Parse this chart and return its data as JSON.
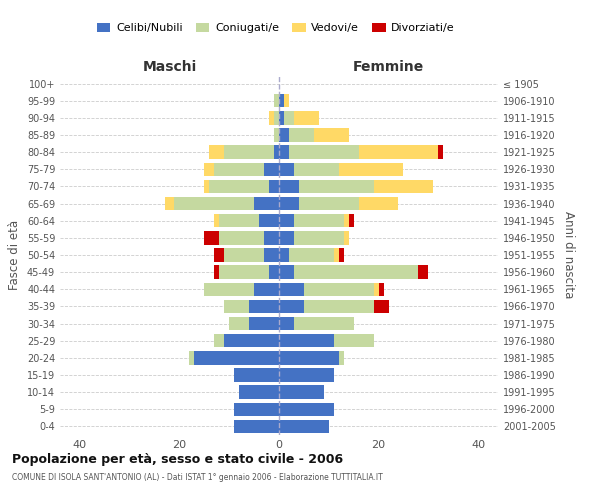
{
  "age_groups": [
    "100+",
    "95-99",
    "90-94",
    "85-89",
    "80-84",
    "75-79",
    "70-74",
    "65-69",
    "60-64",
    "55-59",
    "50-54",
    "45-49",
    "40-44",
    "35-39",
    "30-34",
    "25-29",
    "20-24",
    "15-19",
    "10-14",
    "5-9",
    "0-4"
  ],
  "birth_years": [
    "≤ 1905",
    "1906-1910",
    "1911-1915",
    "1916-1920",
    "1921-1925",
    "1926-1930",
    "1931-1935",
    "1936-1940",
    "1941-1945",
    "1946-1950",
    "1951-1955",
    "1956-1960",
    "1961-1965",
    "1966-1970",
    "1971-1975",
    "1976-1980",
    "1981-1985",
    "1986-1990",
    "1991-1995",
    "1996-2000",
    "2001-2005"
  ],
  "colors": {
    "celibi": "#4472C4",
    "coniugati": "#c5d9a0",
    "vedovi": "#ffd966",
    "divorziati": "#cc0000"
  },
  "maschi": {
    "celibi": [
      0,
      0,
      0,
      0,
      1,
      3,
      2,
      5,
      4,
      3,
      3,
      2,
      5,
      6,
      6,
      11,
      17,
      9,
      8,
      9,
      9
    ],
    "coniugati": [
      0,
      1,
      1,
      1,
      10,
      10,
      12,
      16,
      8,
      9,
      8,
      10,
      10,
      5,
      4,
      2,
      1,
      0,
      0,
      0,
      0
    ],
    "vedovi": [
      0,
      0,
      1,
      0,
      3,
      2,
      1,
      2,
      1,
      0,
      0,
      0,
      0,
      0,
      0,
      0,
      0,
      0,
      0,
      0,
      0
    ],
    "divorziati": [
      0,
      0,
      0,
      0,
      0,
      0,
      0,
      0,
      0,
      3,
      2,
      1,
      0,
      0,
      0,
      0,
      0,
      0,
      0,
      0,
      0
    ]
  },
  "femmine": {
    "celibi": [
      0,
      1,
      1,
      2,
      2,
      3,
      4,
      4,
      3,
      3,
      2,
      3,
      5,
      5,
      3,
      11,
      12,
      11,
      9,
      11,
      10
    ],
    "coniugati": [
      0,
      0,
      2,
      5,
      14,
      9,
      15,
      12,
      10,
      10,
      9,
      25,
      14,
      14,
      12,
      8,
      1,
      0,
      0,
      0,
      0
    ],
    "vedovi": [
      0,
      1,
      5,
      7,
      16,
      13,
      12,
      8,
      1,
      1,
      1,
      0,
      1,
      0,
      0,
      0,
      0,
      0,
      0,
      0,
      0
    ],
    "divorziati": [
      0,
      0,
      0,
      0,
      1,
      0,
      0,
      0,
      1,
      0,
      1,
      2,
      1,
      3,
      0,
      0,
      0,
      0,
      0,
      0,
      0
    ]
  },
  "title": "Popolazione per età, sesso e stato civile - 2006",
  "subtitle": "COMUNE DI ISOLA SANT'ANTONIO (AL) - Dati ISTAT 1° gennaio 2006 - Elaborazione TUTTITALIA.IT",
  "xlabel_left": "Maschi",
  "xlabel_right": "Femmine",
  "ylabel_left": "Fasce di età",
  "ylabel_right": "Anni di nascita",
  "xlim": 44,
  "legend_labels": [
    "Celibi/Nubili",
    "Coniugati/e",
    "Vedovi/e",
    "Divorziati/e"
  ],
  "bg_color": "#ffffff",
  "grid_color": "#cccccc"
}
